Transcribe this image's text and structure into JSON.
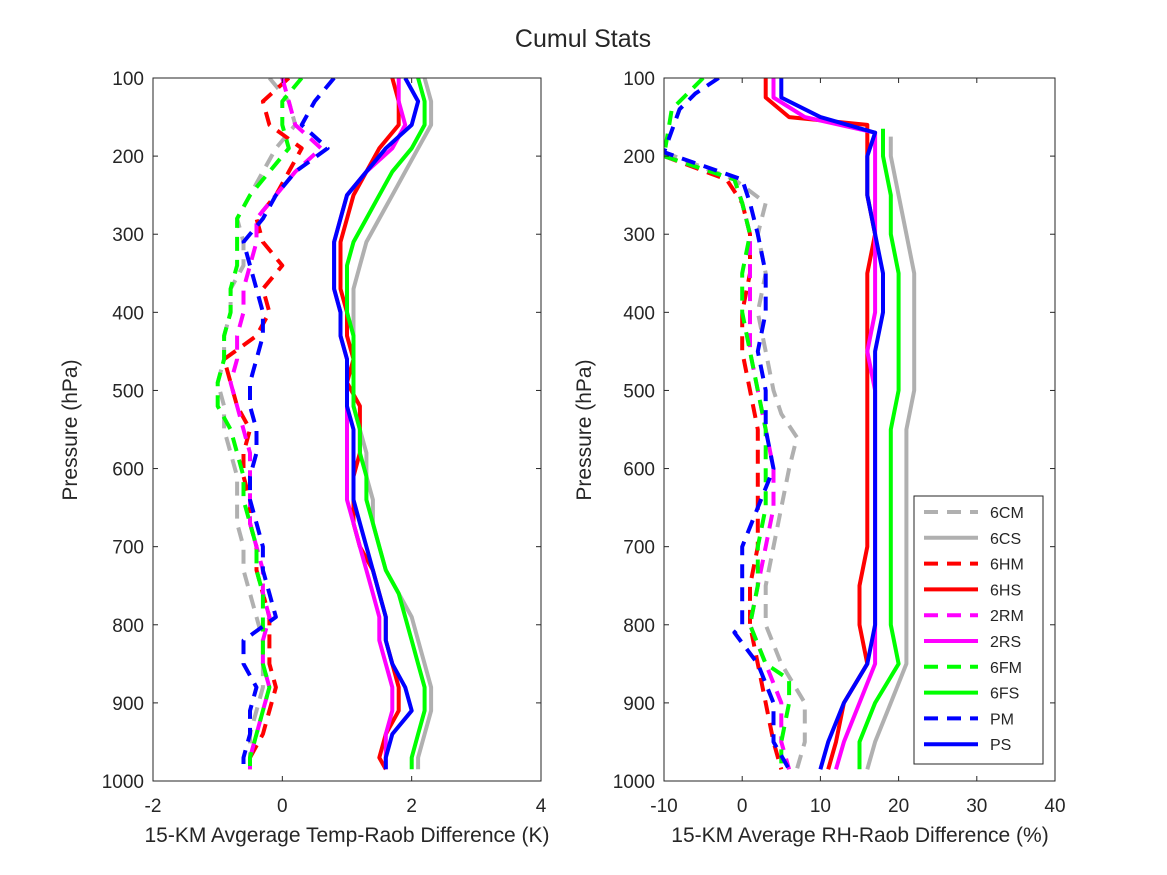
{
  "title": "Cumul Stats",
  "colors": {
    "6C": "#b0b0b0",
    "6H": "#ff0000",
    "2R": "#ff00ff",
    "6F": "#00ff00",
    "P": "#0000ff"
  },
  "legend": {
    "placement": "bottom-right of right panel",
    "entries": [
      "6CM",
      "6CS",
      "6HM",
      "6HS",
      "2RM",
      "2RS",
      "6FM",
      "6FS",
      "PM",
      "PS"
    ]
  },
  "chart_data": [
    {
      "type": "line",
      "xlabel": "15-KM Avgerage Temp-Raob Difference (K)",
      "ylabel": "Pressure (hPa)",
      "xlim": [
        -2,
        4
      ],
      "ylim": [
        100,
        1000
      ],
      "y_reversed": true,
      "grid": false,
      "xticks": [
        "-2",
        "0",
        "2",
        "4"
      ],
      "yticks": [
        "100",
        "200",
        "300",
        "400",
        "500",
        "600",
        "700",
        "800",
        "900",
        "1000"
      ],
      "pressure": [
        100,
        130,
        160,
        190,
        220,
        250,
        280,
        310,
        340,
        370,
        400,
        430,
        460,
        490,
        520,
        550,
        580,
        610,
        640,
        670,
        700,
        730,
        760,
        790,
        820,
        850,
        880,
        910,
        940,
        970,
        985
      ],
      "series": [
        {
          "name": "6CM",
          "style": "dashed",
          "color_key": "6C",
          "values": [
            -0.2,
            0.1,
            0.2,
            -0.1,
            -0.3,
            -0.5,
            -0.7,
            -0.6,
            -0.6,
            -0.8,
            -0.8,
            -0.9,
            -0.9,
            -1.0,
            -0.9,
            -0.9,
            -0.8,
            -0.7,
            -0.7,
            -0.7,
            -0.6,
            -0.6,
            -0.5,
            -0.4,
            -0.3,
            -0.3,
            -0.3,
            -0.4,
            -0.5,
            -0.5,
            -0.5
          ]
        },
        {
          "name": "6CS",
          "style": "solid",
          "color_key": "6C",
          "values": [
            2.2,
            2.3,
            2.3,
            2.1,
            1.9,
            1.7,
            1.5,
            1.3,
            1.2,
            1.1,
            1.1,
            1.1,
            1.1,
            1.1,
            1.1,
            1.2,
            1.3,
            1.3,
            1.4,
            1.4,
            1.5,
            1.6,
            1.8,
            2.0,
            2.1,
            2.2,
            2.3,
            2.3,
            2.2,
            2.1,
            2.1
          ]
        },
        {
          "name": "6HM",
          "style": "dashed",
          "color_key": "6H",
          "values": [
            0.1,
            -0.3,
            -0.2,
            0.3,
            0.1,
            -0.1,
            -0.4,
            -0.3,
            0.0,
            -0.3,
            -0.2,
            -0.4,
            -0.9,
            -0.8,
            -0.7,
            -0.5,
            -0.6,
            -0.6,
            -0.5,
            -0.5,
            -0.4,
            -0.4,
            -0.3,
            -0.2,
            -0.2,
            -0.2,
            -0.1,
            -0.2,
            -0.3,
            -0.5,
            -0.5
          ]
        },
        {
          "name": "6HS",
          "style": "solid",
          "color_key": "6H",
          "values": [
            1.7,
            1.8,
            1.8,
            1.5,
            1.3,
            1.1,
            1.0,
            0.9,
            0.9,
            0.9,
            1.0,
            1.0,
            1.1,
            1.0,
            1.2,
            1.2,
            1.2,
            1.1,
            1.1,
            1.1,
            1.2,
            1.4,
            1.5,
            1.6,
            1.6,
            1.7,
            1.8,
            1.8,
            1.6,
            1.5,
            1.6
          ]
        },
        {
          "name": "2RM",
          "style": "dashed",
          "color_key": "2R",
          "values": [
            0.0,
            0.1,
            0.2,
            0.6,
            0.2,
            -0.1,
            -0.4,
            -0.4,
            -0.5,
            -0.6,
            -0.6,
            -0.7,
            -0.7,
            -0.8,
            -0.7,
            -0.6,
            -0.5,
            -0.5,
            -0.5,
            -0.5,
            -0.4,
            -0.3,
            -0.3,
            -0.2,
            -0.3,
            -0.3,
            -0.2,
            -0.3,
            -0.4,
            -0.5,
            -0.5
          ]
        },
        {
          "name": "2RS",
          "style": "solid",
          "color_key": "2R",
          "values": [
            1.8,
            1.8,
            1.9,
            1.7,
            1.3,
            1.0,
            0.9,
            0.8,
            0.8,
            0.8,
            0.9,
            0.9,
            1.0,
            1.0,
            1.0,
            1.0,
            1.0,
            1.0,
            1.0,
            1.1,
            1.2,
            1.3,
            1.4,
            1.5,
            1.5,
            1.6,
            1.7,
            1.7,
            1.6,
            1.6,
            1.6
          ]
        },
        {
          "name": "6FM",
          "style": "dashed",
          "color_key": "6F",
          "values": [
            0.3,
            0.0,
            0.0,
            0.1,
            -0.2,
            -0.5,
            -0.7,
            -0.7,
            -0.7,
            -0.8,
            -0.8,
            -0.9,
            -0.9,
            -1.0,
            -1.0,
            -0.8,
            -0.7,
            -0.6,
            -0.6,
            -0.5,
            -0.4,
            -0.4,
            -0.3,
            -0.3,
            -0.3,
            -0.3,
            -0.2,
            -0.3,
            -0.4,
            -0.5,
            -0.5
          ]
        },
        {
          "name": "6FS",
          "style": "solid",
          "color_key": "6F",
          "values": [
            2.1,
            2.2,
            2.2,
            2.0,
            1.7,
            1.5,
            1.3,
            1.1,
            1.0,
            1.0,
            1.0,
            1.1,
            1.1,
            1.1,
            1.1,
            1.2,
            1.2,
            1.3,
            1.3,
            1.4,
            1.5,
            1.6,
            1.8,
            1.9,
            2.0,
            2.1,
            2.2,
            2.2,
            2.1,
            2.0,
            2.0
          ]
        },
        {
          "name": "PM",
          "style": "dashed",
          "color_key": "P",
          "values": [
            0.8,
            0.5,
            0.3,
            0.7,
            0.2,
            -0.1,
            -0.3,
            -0.6,
            -0.5,
            -0.4,
            -0.3,
            -0.3,
            -0.4,
            -0.5,
            -0.5,
            -0.4,
            -0.4,
            -0.5,
            -0.5,
            -0.4,
            -0.3,
            -0.3,
            -0.2,
            -0.1,
            -0.6,
            -0.6,
            -0.4,
            -0.5,
            -0.5,
            -0.6,
            -0.6
          ]
        },
        {
          "name": "PS",
          "style": "solid",
          "color_key": "P",
          "values": [
            1.9,
            2.1,
            2.0,
            1.6,
            1.3,
            1.0,
            0.9,
            0.8,
            0.8,
            0.8,
            0.9,
            0.9,
            1.0,
            1.0,
            1.0,
            1.1,
            1.1,
            1.1,
            1.1,
            1.2,
            1.3,
            1.4,
            1.5,
            1.6,
            1.6,
            1.7,
            1.9,
            2.0,
            1.7,
            1.6,
            1.6
          ]
        }
      ]
    },
    {
      "type": "line",
      "xlabel": "15-KM Average RH-Raob Difference (%)",
      "ylabel": "Pressure (hPa)",
      "xlim": [
        -10,
        40
      ],
      "ylim": [
        100,
        1000
      ],
      "y_reversed": true,
      "grid": false,
      "xticks": [
        "-10",
        "0",
        "10",
        "20",
        "30",
        "40"
      ],
      "yticks": [
        "100",
        "200",
        "300",
        "400",
        "500",
        "600",
        "700",
        "800",
        "900",
        "1000"
      ],
      "series": [
        {
          "name": "6CM",
          "style": "dashed",
          "color_key": "6C",
          "pressure": [
            195,
            230,
            260,
            300,
            350,
            400,
            450,
            500,
            530,
            560,
            600,
            650,
            700,
            750,
            800,
            850,
            900,
            950,
            985
          ],
          "values": [
            -10,
            -1,
            3,
            2,
            3,
            2,
            3,
            4,
            5,
            7,
            6,
            5,
            4,
            3,
            3,
            5,
            8,
            8,
            7
          ]
        },
        {
          "name": "6CS",
          "style": "solid",
          "color_key": "6C",
          "pressure": [
            175,
            200,
            250,
            300,
            350,
            400,
            450,
            500,
            550,
            600,
            650,
            700,
            750,
            800,
            850,
            900,
            950,
            985
          ],
          "values": [
            19,
            19,
            20,
            21,
            22,
            22,
            22,
            22,
            21,
            21,
            21,
            21,
            21,
            21,
            21,
            19,
            17,
            16
          ]
        },
        {
          "name": "6HM",
          "style": "dashed",
          "color_key": "6H",
          "pressure": [
            200,
            230,
            260,
            300,
            350,
            400,
            450,
            500,
            550,
            600,
            650,
            700,
            750,
            800,
            850,
            900,
            950,
            985
          ],
          "values": [
            -10,
            -2,
            0,
            1,
            1,
            0,
            0,
            1,
            2,
            2,
            2,
            2,
            1,
            1,
            2,
            3,
            4,
            5
          ]
        },
        {
          "name": "6HS",
          "style": "solid",
          "color_key": "6H",
          "pressure": [
            100,
            125,
            150,
            160,
            200,
            250,
            300,
            350,
            400,
            450,
            500,
            550,
            600,
            650,
            700,
            750,
            800,
            850,
            900,
            950,
            985
          ],
          "values": [
            3,
            3,
            6,
            16,
            16,
            16,
            17,
            16,
            16,
            16,
            16,
            16,
            16,
            16,
            16,
            15,
            15,
            16,
            13,
            12,
            11
          ]
        },
        {
          "name": "2RM",
          "style": "dashed",
          "color_key": "2R",
          "pressure": [
            200,
            230,
            260,
            300,
            350,
            400,
            450,
            500,
            550,
            600,
            650,
            700,
            750,
            800,
            850,
            900,
            950,
            985
          ],
          "values": [
            -10,
            -1,
            0,
            1,
            1,
            1,
            1,
            2,
            3,
            4,
            4,
            3,
            2,
            1,
            3,
            5,
            5,
            6
          ]
        },
        {
          "name": "2RS",
          "style": "solid",
          "color_key": "2R",
          "pressure": [
            100,
            125,
            150,
            170,
            200,
            250,
            300,
            350,
            400,
            450,
            500,
            550,
            600,
            650,
            700,
            750,
            800,
            850,
            900,
            950,
            985
          ],
          "values": [
            4,
            4,
            8,
            17,
            17,
            17,
            17,
            17,
            17,
            16,
            17,
            17,
            17,
            17,
            17,
            17,
            17,
            17,
            15,
            13,
            12
          ]
        },
        {
          "name": "6FM",
          "style": "dashed",
          "color_key": "6F",
          "pressure": [
            100,
            120,
            140,
            200,
            230,
            260,
            300,
            350,
            400,
            450,
            500,
            550,
            600,
            650,
            700,
            750,
            800,
            850,
            870,
            900,
            950,
            985
          ],
          "values": [
            -5,
            -7,
            -9,
            -10,
            -1,
            0,
            1,
            0,
            0,
            1,
            2,
            3,
            3,
            3,
            2,
            2,
            1,
            3,
            6,
            6,
            5,
            5
          ]
        },
        {
          "name": "6FS",
          "style": "solid",
          "color_key": "6F",
          "pressure": [
            165,
            200,
            250,
            300,
            350,
            400,
            450,
            500,
            550,
            600,
            650,
            700,
            750,
            800,
            850,
            900,
            950,
            985
          ],
          "values": [
            18,
            18,
            19,
            19,
            20,
            20,
            20,
            20,
            19,
            19,
            19,
            19,
            19,
            19,
            20,
            17,
            15,
            15
          ]
        },
        {
          "name": "PM",
          "style": "dashed",
          "color_key": "P",
          "pressure": [
            100,
            120,
            140,
            195,
            230,
            260,
            300,
            350,
            400,
            450,
            500,
            550,
            600,
            650,
            700,
            750,
            800,
            810,
            850,
            900,
            950,
            985
          ],
          "values": [
            -3,
            -6,
            -8,
            -10,
            0,
            1,
            2,
            3,
            3,
            2,
            3,
            3,
            4,
            2,
            0,
            0,
            0,
            -1,
            2,
            4,
            4,
            6
          ]
        },
        {
          "name": "PS",
          "style": "solid",
          "color_key": "P",
          "pressure": [
            100,
            125,
            150,
            170,
            200,
            250,
            300,
            350,
            400,
            450,
            500,
            550,
            600,
            650,
            700,
            750,
            800,
            850,
            900,
            950,
            985
          ],
          "values": [
            5,
            5,
            10,
            17,
            16,
            16,
            17,
            18,
            18,
            17,
            17,
            17,
            17,
            17,
            17,
            17,
            17,
            16,
            13,
            11,
            10
          ]
        }
      ]
    }
  ]
}
